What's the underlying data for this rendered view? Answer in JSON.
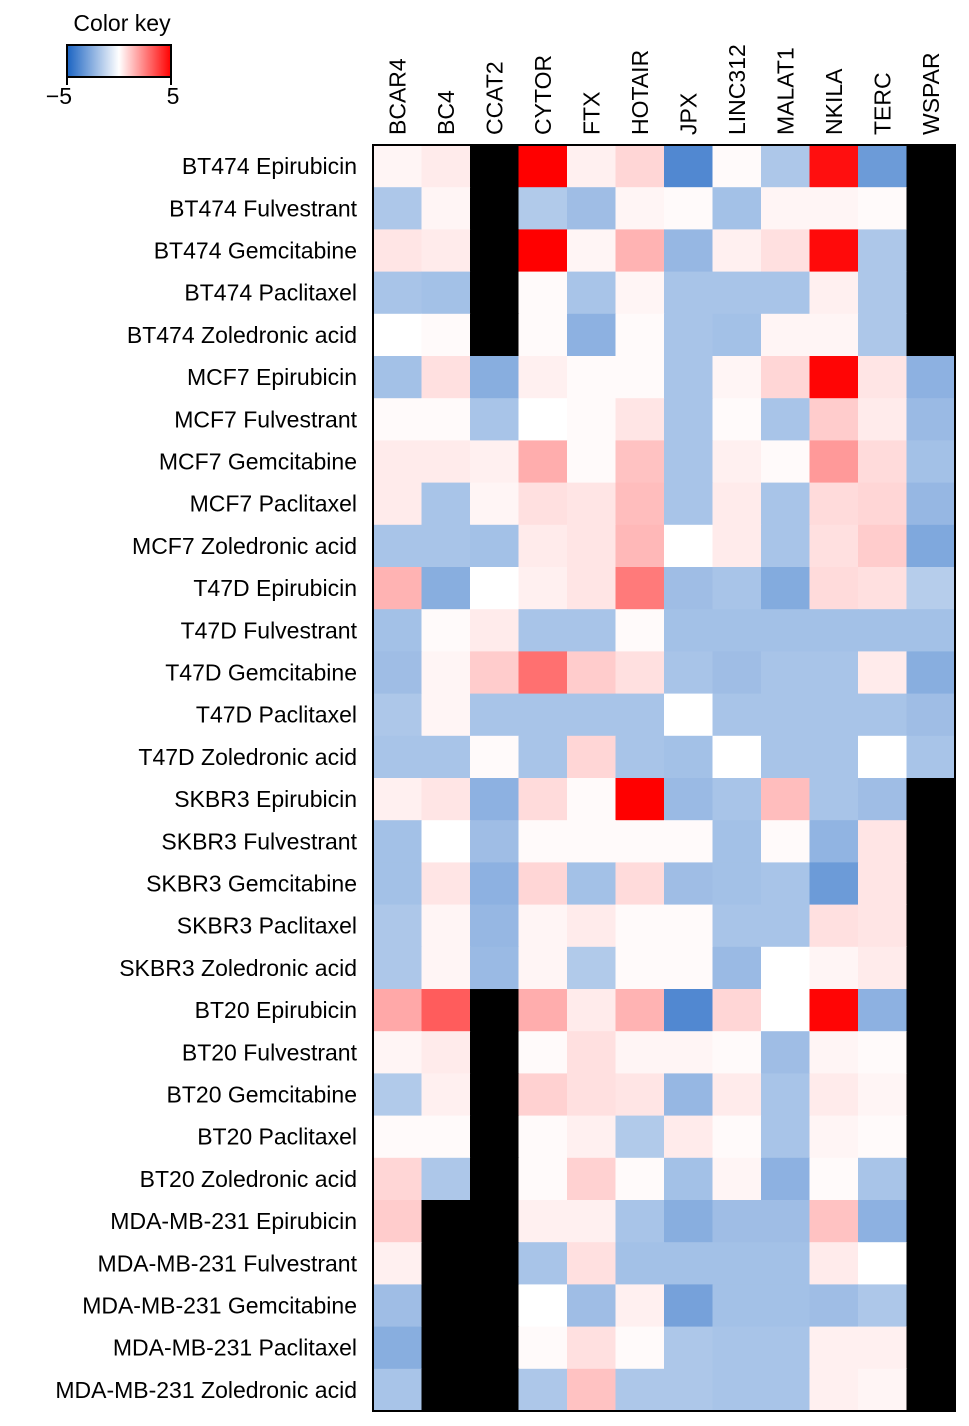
{
  "chart_data": {
    "type": "heatmap",
    "title": "",
    "xlabel": "",
    "ylabel": "",
    "color_key": {
      "title": "Color key",
      "min": -5,
      "max": 5,
      "min_label": "−5",
      "max_label": "5",
      "colors": [
        "#1a63c2",
        "#ffffff",
        "#ff0000"
      ],
      "missing_color": "#000000"
    },
    "columns": [
      "BCAR4",
      "BC4",
      "CCAT2",
      "CYTOR",
      "FTX",
      "HOTAIR",
      "JPX",
      "LINC312",
      "MALAT1",
      "NKILA",
      "TERC",
      "WSPAR"
    ],
    "rows": [
      "BT474 Epirubicin",
      "BT474 Fulvestrant",
      "BT474 Gemcitabine",
      "BT474 Paclitaxel",
      "BT474 Zoledronic acid",
      "MCF7 Epirubicin",
      "MCF7 Fulvestrant",
      "MCF7 Gemcitabine",
      "MCF7 Paclitaxel",
      "MCF7 Zoledronic acid",
      "T47D Epirubicin",
      "T47D Fulvestrant",
      "T47D Gemcitabine",
      "T47D Paclitaxel",
      "T47D Zoledronic acid",
      "SKBR3 Epirubicin",
      "SKBR3 Fulvestrant",
      "SKBR3 Gemcitabine",
      "SKBR3 Paclitaxel",
      "SKBR3 Zoledronic acid",
      "BT20 Epirubicin",
      "BT20 Fulvestrant",
      "BT20 Gemcitabine",
      "BT20 Paclitaxel",
      "BT20 Zoledronic acid",
      "MDA-MB-231 Epirubicin",
      "MDA-MB-231 Fulvestrant",
      "MDA-MB-231 Gemcitabine",
      "MDA-MB-231 Paclitaxel",
      "MDA-MB-231 Zoledronic acid"
    ],
    "values": [
      [
        0.2,
        0.4,
        null,
        5,
        0.3,
        0.8,
        -3.8,
        0.1,
        -1.8,
        4.7,
        -3.2,
        null
      ],
      [
        -1.8,
        0.2,
        null,
        -1.7,
        -2.1,
        0.2,
        0.1,
        -2.0,
        0.2,
        0.2,
        0.1,
        null
      ],
      [
        0.5,
        0.4,
        null,
        5,
        0.2,
        1.5,
        -2.3,
        0.3,
        0.6,
        4.8,
        -1.8,
        null
      ],
      [
        -1.9,
        -2.0,
        null,
        0.1,
        -1.9,
        0.2,
        -1.9,
        -1.9,
        -1.9,
        0.3,
        -1.8,
        null
      ],
      [
        0.0,
        0.1,
        null,
        0.1,
        -2.5,
        0.1,
        -1.9,
        -2.0,
        0.2,
        0.2,
        -1.8,
        null
      ],
      [
        -2.0,
        0.6,
        -2.6,
        0.3,
        0.1,
        0.1,
        -1.9,
        0.2,
        0.8,
        4.9,
        0.5,
        -2.5
      ],
      [
        0.1,
        0.1,
        -1.9,
        0.0,
        0.1,
        0.5,
        -1.9,
        0.1,
        -1.9,
        1.0,
        0.4,
        -2.2
      ],
      [
        0.4,
        0.4,
        0.3,
        1.6,
        0.1,
        1.2,
        -1.9,
        0.3,
        0.1,
        2.0,
        0.7,
        -2.0
      ],
      [
        0.4,
        -1.9,
        0.2,
        0.6,
        0.5,
        1.3,
        -1.9,
        0.4,
        -1.9,
        0.7,
        0.8,
        -2.3
      ],
      [
        -1.9,
        -1.9,
        -2.0,
        0.4,
        0.5,
        1.4,
        0.0,
        0.4,
        -1.9,
        0.6,
        1.0,
        -2.8
      ],
      [
        1.5,
        -2.6,
        0.0,
        0.3,
        0.5,
        2.6,
        -2.1,
        -1.9,
        -2.7,
        0.7,
        0.6,
        -1.6
      ],
      [
        -2.0,
        0.1,
        0.4,
        -1.9,
        -1.9,
        0.1,
        -2.0,
        -2.0,
        -2.0,
        -2.0,
        -2.0,
        -2.0
      ],
      [
        -2.1,
        0.2,
        1.0,
        2.8,
        1.0,
        0.6,
        -1.9,
        -2.1,
        -1.9,
        -1.9,
        0.4,
        -2.6
      ],
      [
        -1.8,
        0.2,
        -1.9,
        -1.9,
        -1.9,
        -1.9,
        0.0,
        -1.9,
        -1.9,
        -1.9,
        -1.9,
        -2.1
      ],
      [
        -1.9,
        -1.9,
        0.1,
        -1.9,
        0.8,
        -1.9,
        -2.0,
        0.0,
        -1.9,
        -1.9,
        0.0,
        -1.9
      ],
      [
        0.3,
        0.5,
        -2.5,
        0.7,
        0.1,
        5,
        -2.2,
        -1.9,
        1.3,
        -1.9,
        -2.1,
        null
      ],
      [
        -2.0,
        0.0,
        -2.1,
        0.1,
        0.1,
        0.1,
        0.1,
        -2.0,
        0.1,
        -2.4,
        0.5,
        null
      ],
      [
        -2.0,
        0.5,
        -2.5,
        0.8,
        -2.0,
        0.7,
        -2.1,
        -2.0,
        -1.9,
        -3.2,
        0.5,
        null
      ],
      [
        -1.8,
        0.2,
        -2.3,
        0.2,
        0.4,
        0.1,
        0.1,
        -1.9,
        -1.9,
        0.6,
        0.5,
        null
      ],
      [
        -1.8,
        0.2,
        -2.2,
        0.2,
        -1.7,
        0.1,
        0.1,
        -2.2,
        0.0,
        0.2,
        0.4,
        null
      ],
      [
        1.7,
        3.2,
        null,
        1.6,
        0.4,
        1.5,
        -3.8,
        0.8,
        0.0,
        4.9,
        -2.5,
        null
      ],
      [
        0.2,
        0.4,
        null,
        0.1,
        0.6,
        0.2,
        0.2,
        0.1,
        -2.1,
        0.2,
        0.1,
        null
      ],
      [
        -1.7,
        0.3,
        null,
        0.9,
        0.6,
        0.5,
        -2.3,
        0.4,
        -1.9,
        0.4,
        0.2,
        null
      ],
      [
        0.1,
        0.1,
        null,
        0.1,
        0.3,
        -1.7,
        0.4,
        0.1,
        -1.9,
        0.2,
        0.1,
        null
      ],
      [
        0.8,
        -1.8,
        null,
        0.1,
        0.9,
        0.1,
        -2.0,
        0.2,
        -2.5,
        0.1,
        -1.9,
        null
      ],
      [
        1.0,
        null,
        null,
        0.3,
        0.3,
        -1.9,
        -2.6,
        -2.1,
        -2.1,
        1.2,
        -2.5,
        null
      ],
      [
        0.3,
        null,
        null,
        -1.9,
        0.6,
        -2.0,
        -2.0,
        -2.0,
        -2.0,
        0.4,
        0.0,
        null
      ],
      [
        -2.1,
        null,
        null,
        0.0,
        -2.1,
        0.3,
        -3.0,
        -2.0,
        -2.0,
        -2.1,
        -1.8,
        null
      ],
      [
        -2.6,
        null,
        null,
        0.1,
        0.6,
        0.1,
        -1.8,
        -1.9,
        -1.9,
        0.3,
        0.3,
        null
      ],
      [
        -1.9,
        null,
        null,
        -1.8,
        1.2,
        -1.8,
        -1.8,
        -1.9,
        -1.9,
        0.3,
        0.2,
        null
      ]
    ]
  }
}
